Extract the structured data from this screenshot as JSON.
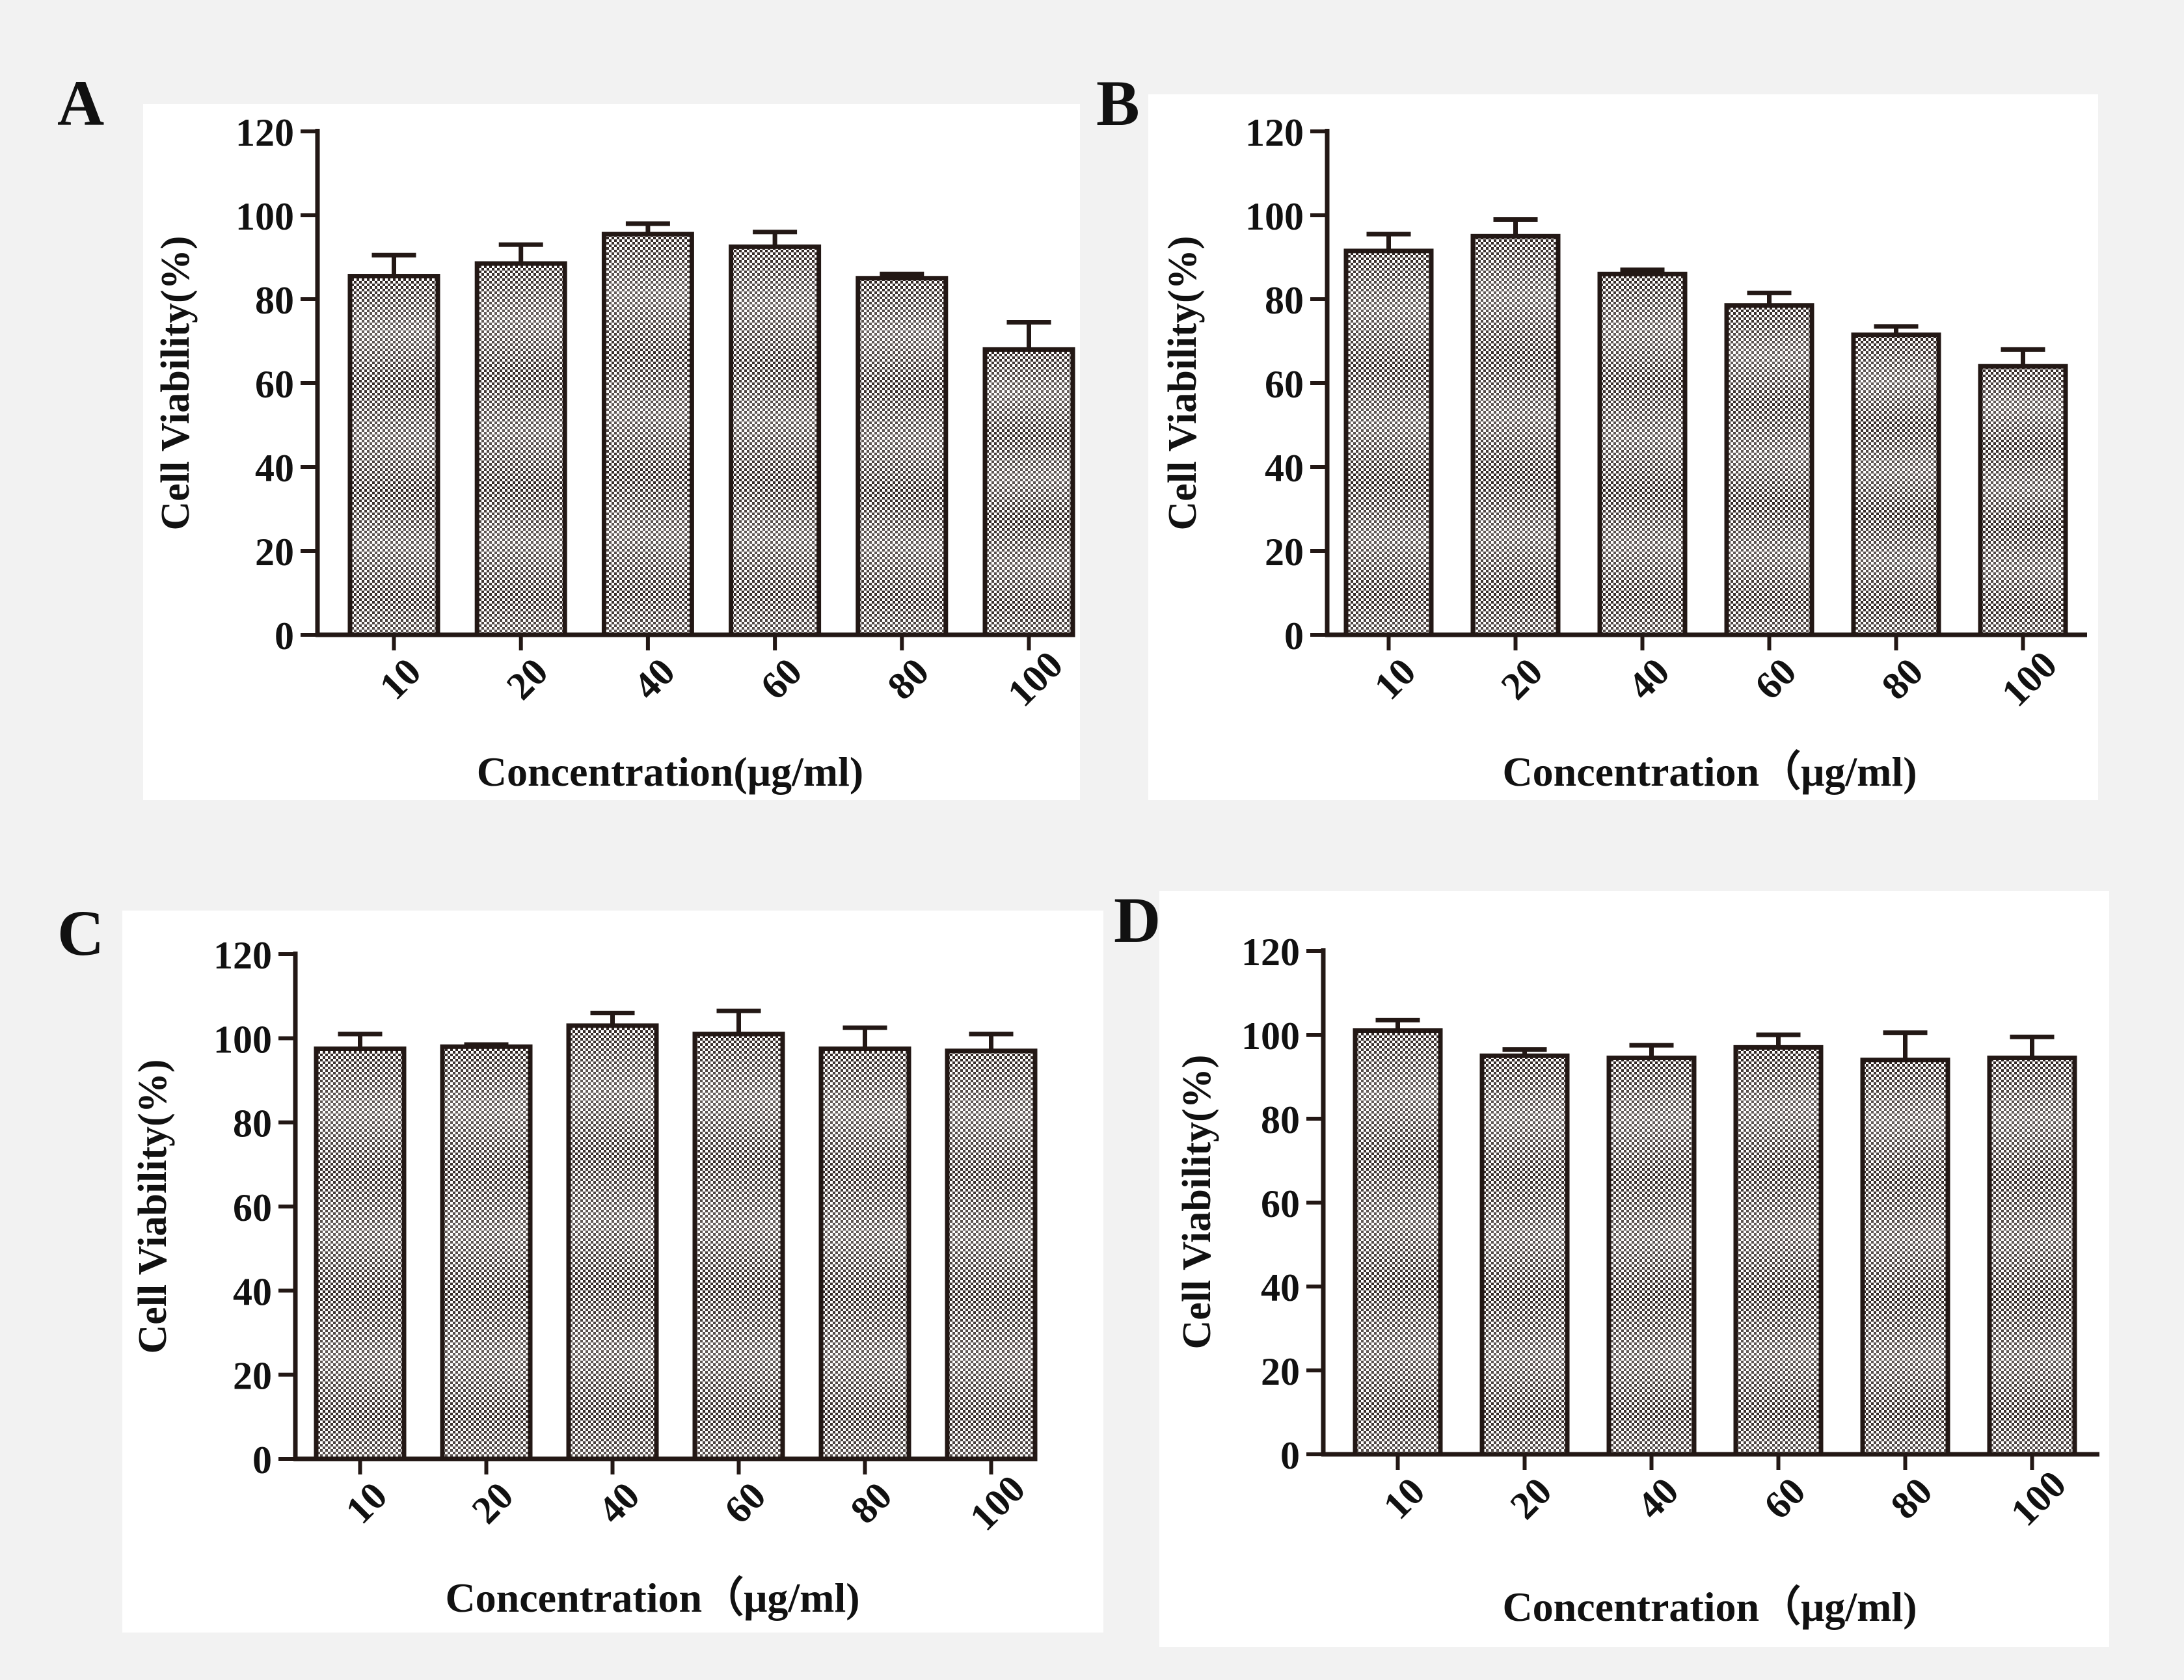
{
  "figure": {
    "background": "#f2f2f2",
    "panel_background": "#ffffff",
    "bar_ink": "#231815"
  },
  "chart_data": [
    {
      "id": "A",
      "panel_label": "A",
      "type": "bar",
      "categories": [
        "10",
        "20",
        "40",
        "60",
        "80",
        "100"
      ],
      "values": [
        85.5,
        88.5,
        95.5,
        92.5,
        85,
        68
      ],
      "errors": [
        5,
        4.5,
        2.5,
        3.5,
        1,
        6.5
      ],
      "ylabel": "Cell Viability(%)",
      "xlabel": "Concentration(μg/ml)",
      "ylim": [
        0,
        120
      ],
      "yticks": [
        "0",
        "20",
        "40",
        "60",
        "80",
        "100",
        "120"
      ]
    },
    {
      "id": "B",
      "panel_label": "B",
      "type": "bar",
      "categories": [
        "10",
        "20",
        "40",
        "60",
        "80",
        "100"
      ],
      "values": [
        91.5,
        95,
        86,
        78.5,
        71.5,
        64
      ],
      "errors": [
        4,
        4,
        1,
        3,
        2,
        4
      ],
      "ylabel": "Cell Viability(%)",
      "xlabel": "Concentration（μg/ml)",
      "ylim": [
        0,
        120
      ],
      "yticks": [
        "0",
        "20",
        "40",
        "60",
        "80",
        "100",
        "120"
      ]
    },
    {
      "id": "C",
      "panel_label": "C",
      "type": "bar",
      "categories": [
        "10",
        "20",
        "40",
        "60",
        "80",
        "100"
      ],
      "values": [
        97.5,
        98,
        103,
        101,
        97.5,
        97
      ],
      "errors": [
        3.5,
        0.5,
        3,
        5.5,
        5,
        4
      ],
      "ylabel": "Cell Viability(%)",
      "xlabel": "Concentration（μg/ml)",
      "ylim": [
        0,
        120
      ],
      "yticks": [
        "0",
        "20",
        "40",
        "60",
        "80",
        "100",
        "120"
      ]
    },
    {
      "id": "D",
      "panel_label": "D",
      "type": "bar",
      "categories": [
        "10",
        "20",
        "40",
        "60",
        "80",
        "100"
      ],
      "values": [
        101,
        95,
        94.5,
        97,
        94,
        94.5
      ],
      "errors": [
        2.5,
        1.5,
        3,
        3,
        6.5,
        5
      ],
      "ylabel": "Cell Viability(%)",
      "xlabel": "Concentration（μg/ml)",
      "ylim": [
        0,
        120
      ],
      "yticks": [
        "0",
        "20",
        "40",
        "60",
        "80",
        "100",
        "120"
      ]
    }
  ]
}
